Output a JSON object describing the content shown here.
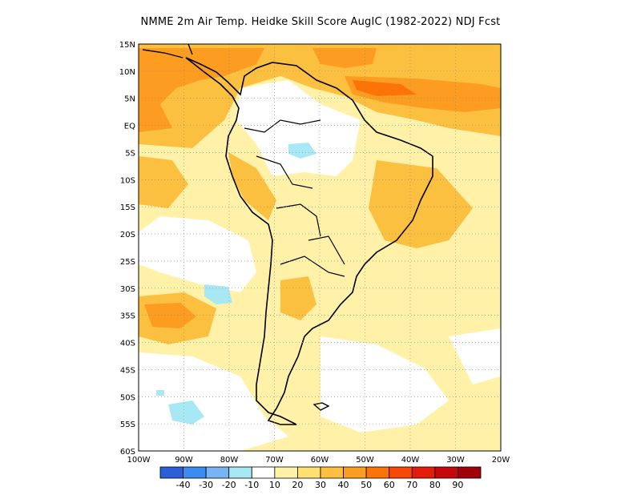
{
  "title": "NMME  2m Air Temp. Heidke Skill Score AugIC (1982-2022) NDJ Fcst",
  "lat_labels": [
    "15N",
    "10N",
    "5N",
    "EQ",
    "5S",
    "10S",
    "15S",
    "20S",
    "25S",
    "30S",
    "35S",
    "40S",
    "45S",
    "50S",
    "55S",
    "60S"
  ],
  "lon_labels": [
    "100W",
    "90W",
    "80W",
    "70W",
    "60W",
    "50W",
    "40W",
    "30W",
    "20W"
  ],
  "colorbar": {
    "colors": [
      "#2a5fd8",
      "#3a8cf0",
      "#78b4f4",
      "#a8e8f4",
      "#ffffff",
      "#fff2a8",
      "#ffe070",
      "#fcc040",
      "#fc9c20",
      "#fc7408",
      "#f84808",
      "#e41c0c",
      "#c4080c",
      "#a0000c"
    ],
    "labels": [
      "-40",
      "-30",
      "-20",
      "-10",
      "10",
      "20",
      "30",
      "40",
      "50",
      "60",
      "70",
      "80",
      "90"
    ]
  },
  "map_colors": {
    "white": "#ffffff",
    "light_yellow": "#fff2a8",
    "yellow": "#ffe070",
    "light_orange": "#fcc040",
    "orange": "#fc9c20",
    "cyan": "#a8e8f4"
  }
}
